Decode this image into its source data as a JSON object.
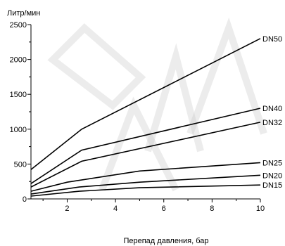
{
  "chart_data": {
    "type": "line",
    "ylabel": "Литр/мин",
    "xlabel": "Перепад давления, бар",
    "xlim": [
      0.5,
      10
    ],
    "ylim": [
      0,
      2500
    ],
    "xticks": [
      2,
      4,
      6,
      8,
      10
    ],
    "yticks": [
      0,
      500,
      1000,
      1500,
      2000,
      2500
    ],
    "x_minor_step": 1,
    "y_minor_step": 250,
    "line_color": "#000000",
    "watermark_text": "DANA",
    "series": [
      {
        "name": "DN50",
        "x": [
          0.5,
          2.6,
          10
        ],
        "y": [
          420,
          1000,
          2300
        ]
      },
      {
        "name": "DN40",
        "x": [
          0.5,
          2.6,
          10
        ],
        "y": [
          220,
          700,
          1300
        ]
      },
      {
        "name": "DN32",
        "x": [
          0.5,
          2.6,
          10
        ],
        "y": [
          170,
          540,
          1100
        ]
      },
      {
        "name": "DN25",
        "x": [
          0.5,
          2.0,
          5.0,
          10
        ],
        "y": [
          110,
          240,
          400,
          520
        ]
      },
      {
        "name": "DN20",
        "x": [
          0.5,
          2.5,
          5.0,
          10
        ],
        "y": [
          70,
          170,
          240,
          340
        ]
      },
      {
        "name": "DN15",
        "x": [
          0.5,
          2.5,
          5.0,
          10
        ],
        "y": [
          40,
          110,
          160,
          200
        ]
      }
    ]
  }
}
